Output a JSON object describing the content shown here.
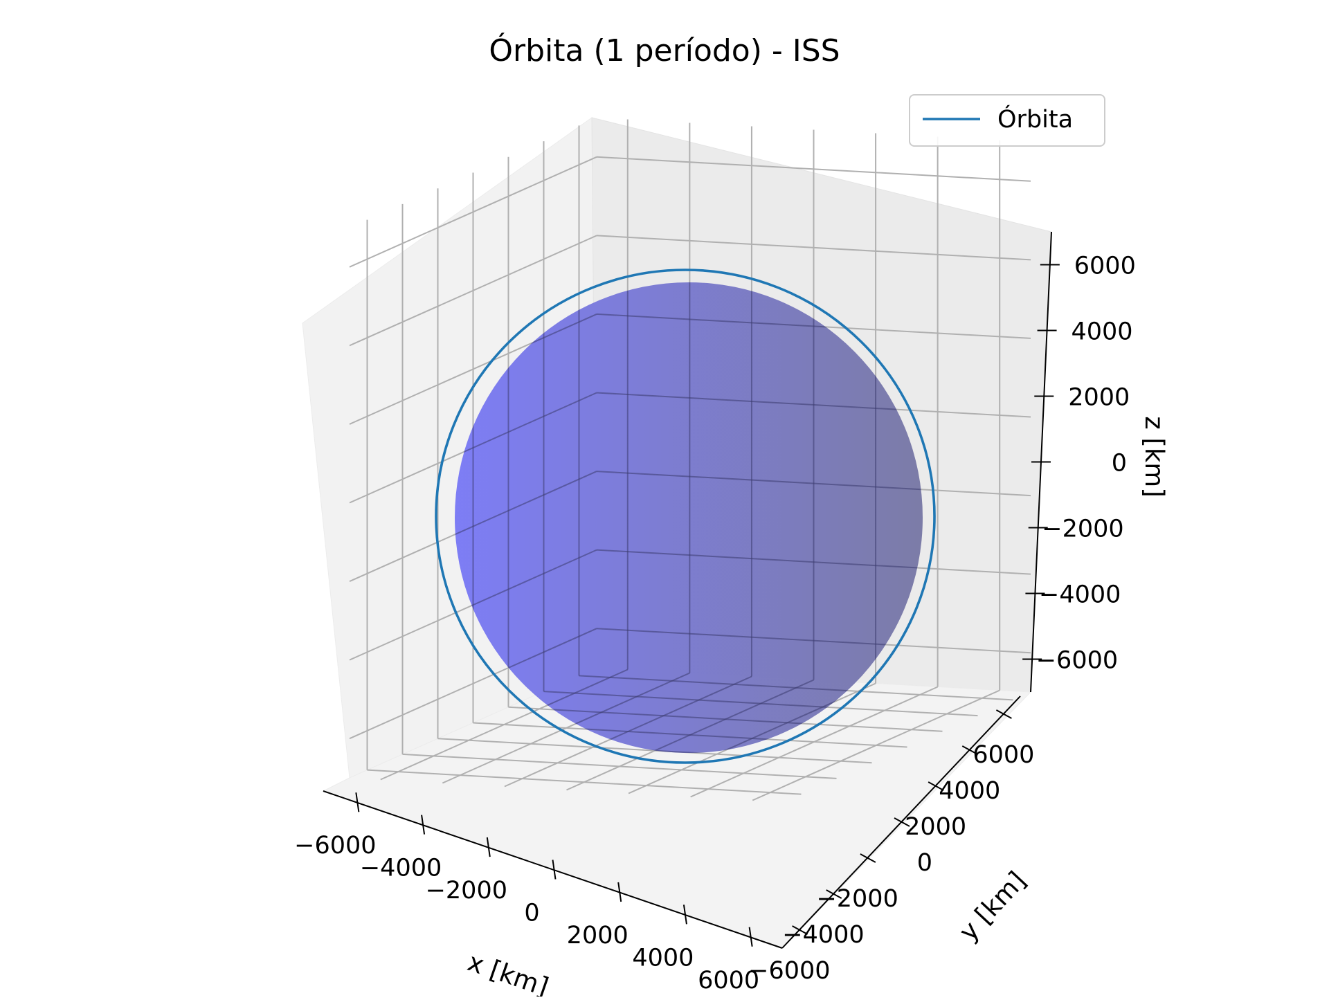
{
  "chart_data": {
    "type": "3d-line-surface",
    "title": "Órbita (1 período) - ISS",
    "xlabel": "x [km]",
    "ylabel": "y [km]",
    "zlabel": "z [km]",
    "xlim": [
      -7000,
      7000
    ],
    "ylim": [
      -7000,
      7000
    ],
    "zlim": [
      -7000,
      7000
    ],
    "xticks": [
      {
        "value": -6000,
        "label": "−6000"
      },
      {
        "value": -4000,
        "label": "−4000"
      },
      {
        "value": -2000,
        "label": "−2000"
      },
      {
        "value": 0,
        "label": "0"
      },
      {
        "value": 2000,
        "label": "2000"
      },
      {
        "value": 4000,
        "label": "4000"
      },
      {
        "value": 6000,
        "label": "6000"
      }
    ],
    "yticks": [
      {
        "value": -6000,
        "label": "−6000"
      },
      {
        "value": -4000,
        "label": "−4000"
      },
      {
        "value": -2000,
        "label": "−2000"
      },
      {
        "value": 0,
        "label": "0"
      },
      {
        "value": 2000,
        "label": "2000"
      },
      {
        "value": 4000,
        "label": "4000"
      },
      {
        "value": 6000,
        "label": "6000"
      }
    ],
    "zticks": [
      {
        "value": -6000,
        "label": "−6000"
      },
      {
        "value": -4000,
        "label": "−4000"
      },
      {
        "value": -2000,
        "label": "−2000"
      },
      {
        "value": 0,
        "label": "0"
      },
      {
        "value": 2000,
        "label": "2000"
      },
      {
        "value": 4000,
        "label": "4000"
      },
      {
        "value": 6000,
        "label": "6000"
      }
    ],
    "grid": true,
    "legend": {
      "position": "upper-right",
      "entries": [
        {
          "label": "Órbita",
          "color": "#1f77b4"
        }
      ]
    },
    "series": [
      {
        "name": "Órbita",
        "kind": "line",
        "color": "#1f77b4",
        "shape": "circular orbit",
        "radius_km": 6780
      }
    ],
    "surface": {
      "kind": "sphere",
      "radius_km": 6371,
      "color": "#7b7bf5",
      "shade_color": "#7a7aa6"
    }
  }
}
